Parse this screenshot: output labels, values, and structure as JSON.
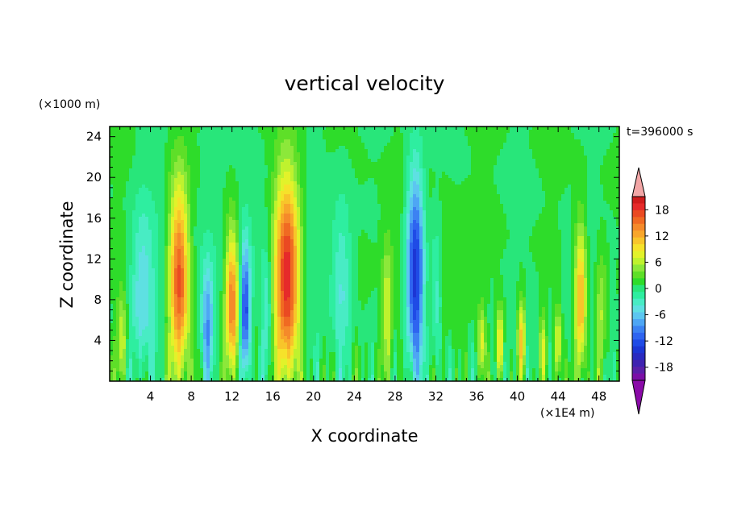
{
  "chart_data": {
    "type": "heatmap",
    "title": "vertical velocity",
    "xlabel": "X coordinate",
    "ylabel": "Z coordinate",
    "x_unit": "(×1E4 m)",
    "y_unit": "(×1000 m)",
    "time_label": "t=396000 s",
    "xlim": [
      0,
      50
    ],
    "ylim": [
      0,
      25
    ],
    "x_ticks": [
      4,
      8,
      12,
      16,
      20,
      24,
      28,
      32,
      36,
      40,
      44,
      48
    ],
    "y_ticks": [
      4,
      8,
      12,
      16,
      20,
      24
    ],
    "colorbar": {
      "levels": [
        -21,
        -19.5,
        -18,
        -16.5,
        -15,
        -13.5,
        -12,
        -10.5,
        -9,
        -7.5,
        -6,
        -4.5,
        -3,
        -1.5,
        0,
        1.5,
        3,
        4.5,
        6,
        7.5,
        9,
        10.5,
        12,
        13.5,
        15,
        16.5,
        18,
        19.5,
        21
      ],
      "tick_labels": [
        "18",
        "12",
        "6",
        "0",
        "-6",
        "-12",
        "-18"
      ],
      "tick_values": [
        18,
        12,
        6,
        0,
        -6,
        -12,
        -18
      ],
      "colors": [
        "#7a0fa6",
        "#5a1fa8",
        "#3e22b0",
        "#2a2ac0",
        "#1c36d4",
        "#1f4be6",
        "#2e64f0",
        "#3c82f2",
        "#4ea6f4",
        "#5cc6f0",
        "#5ee0e2",
        "#48ecc4",
        "#2eeea0",
        "#28e67a",
        "#2edc2a",
        "#5edf28",
        "#8ce83a",
        "#bff22e",
        "#e2f22a",
        "#f6e22a",
        "#f8c52a",
        "#f8a62a",
        "#f58a2a",
        "#f06a22",
        "#ea4a22",
        "#e62a2a",
        "#d01c1c"
      ],
      "over_color": "#f2a6a6",
      "under_color": "#8a0aa8"
    },
    "features": [
      {
        "x": 6.8,
        "amp": 17,
        "top": 22,
        "w": 1.0
      },
      {
        "x": 3.2,
        "amp": -6,
        "top": 20,
        "w": 1.2
      },
      {
        "x": 1.2,
        "amp": 6,
        "top": 10,
        "w": 0.5
      },
      {
        "x": 9.6,
        "amp": -9,
        "top": 13,
        "w": 0.6
      },
      {
        "x": 12.0,
        "amp": 15,
        "top": 17,
        "w": 0.7
      },
      {
        "x": 13.3,
        "amp": -13,
        "top": 15,
        "w": 0.5
      },
      {
        "x": 17.4,
        "amp": 20,
        "top": 23,
        "w": 1.3
      },
      {
        "x": 15.4,
        "amp": -5,
        "top": 14,
        "w": 0.5
      },
      {
        "x": 22.8,
        "amp": -5,
        "top": 20,
        "w": 1.0
      },
      {
        "x": 27.2,
        "amp": 6,
        "top": 15,
        "w": 0.5
      },
      {
        "x": 30.0,
        "amp": -17,
        "top": 23,
        "w": 0.9
      },
      {
        "x": 32.0,
        "amp": -5,
        "top": 18,
        "w": 0.6
      },
      {
        "x": 36.5,
        "amp": 8,
        "top": 8,
        "w": 0.4
      },
      {
        "x": 38.3,
        "amp": 10,
        "top": 8,
        "w": 0.4
      },
      {
        "x": 40.4,
        "amp": 11,
        "top": 9,
        "w": 0.4
      },
      {
        "x": 42.5,
        "amp": 6,
        "top": 8,
        "w": 0.4
      },
      {
        "x": 44.0,
        "amp": 9,
        "top": 8,
        "w": 0.4
      },
      {
        "x": 46.2,
        "amp": 13,
        "top": 17,
        "w": 0.6
      },
      {
        "x": 48.2,
        "amp": 6,
        "top": 14,
        "w": 0.6
      }
    ]
  }
}
